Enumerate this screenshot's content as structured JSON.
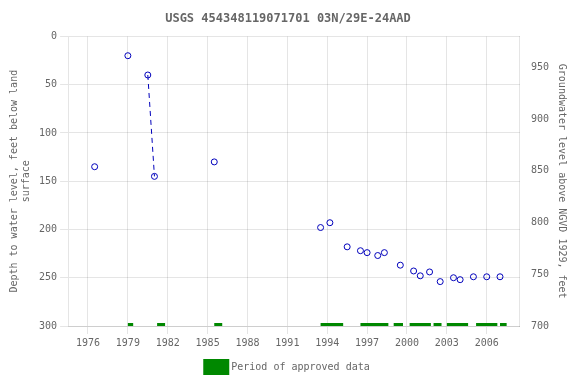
{
  "chart_data": {
    "type": "scatter",
    "title": "USGS 454348119071701 03N/29E-24AAD",
    "ylabel": "Depth to water level, feet below land\nsurface",
    "y2label": "Groundwater level above NGVD 1929, feet",
    "xlim": [
      1974.5,
      2008.5
    ],
    "xticks": [
      1976,
      1979,
      1982,
      1985,
      1988,
      1991,
      1994,
      1997,
      2000,
      2003,
      2006
    ],
    "ylim": [
      300,
      0
    ],
    "yticks": [
      0,
      50,
      100,
      150,
      200,
      250,
      300
    ],
    "y2lim": [
      700,
      980
    ],
    "y2ticks": [
      700,
      750,
      800,
      850,
      900,
      950
    ],
    "grid": true,
    "legend": "bottom",
    "series": [
      {
        "type": "scatter",
        "marker": "open_circle",
        "color": "#0000bb",
        "x": [
          1976.5,
          1979.0,
          1980.5,
          1981.0,
          1985.5,
          1993.5,
          1994.2,
          1995.5,
          1996.5,
          1997.0,
          1997.8,
          1998.3,
          1999.5,
          2000.5,
          2001.0,
          2001.7,
          2002.5,
          2003.5,
          2004.0,
          2005.0,
          2006.0,
          2007.0
        ],
        "values": [
          135,
          20,
          40,
          145,
          130,
          198,
          193,
          218,
          222,
          224,
          227,
          224,
          237,
          243,
          248,
          244,
          254,
          250,
          252,
          249,
          249,
          249
        ]
      },
      {
        "type": "line",
        "line_style": "dashed",
        "color": "#0000bb",
        "x": [
          1980.5,
          1981.0
        ],
        "values": [
          40,
          145
        ]
      },
      {
        "name": "Period of approved data",
        "type": "range_bar",
        "color": "#008800",
        "y": 300,
        "ranges": [
          [
            1979.0,
            1979.4
          ],
          [
            1981.2,
            1981.8
          ],
          [
            1985.5,
            1986.1
          ],
          [
            1993.5,
            1995.2
          ],
          [
            1996.5,
            1998.6
          ],
          [
            1999.0,
            1999.7
          ],
          [
            2000.2,
            2001.8
          ],
          [
            2002.0,
            2002.6
          ],
          [
            2003.0,
            2004.6
          ],
          [
            2005.2,
            2006.8
          ],
          [
            2007.0,
            2007.5
          ]
        ]
      }
    ]
  }
}
